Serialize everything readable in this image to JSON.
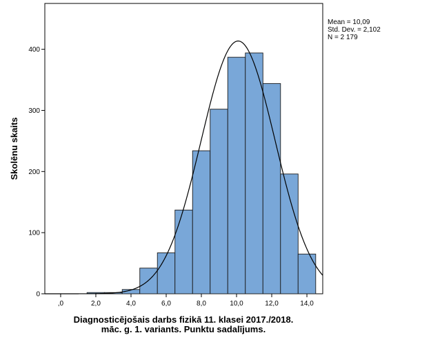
{
  "chart_data": {
    "type": "bar",
    "subtype": "histogram",
    "xlabel_lines": [
      "Diagnosticējošais darbs fizikā 11. klasei 2017./2018.",
      "māc. g. 1. variants. Punktu sadalījums."
    ],
    "ylabel": "Skolēnu skaits",
    "x_ticks": [
      ",0",
      "2,0",
      "4,0",
      "6,0",
      "8,0",
      "10,0",
      "12,0",
      "14,0"
    ],
    "x_tick_values": [
      0,
      2,
      4,
      6,
      8,
      10,
      12,
      14
    ],
    "y_ticks": [
      "0",
      "100",
      "200",
      "300",
      "400"
    ],
    "y_tick_values": [
      0,
      100,
      200,
      300,
      400
    ],
    "xlim": [
      -0.9,
      14.9
    ],
    "ylim": [
      0,
      475
    ],
    "bin_width": 1,
    "bins": [
      {
        "x": 0,
        "count": 0
      },
      {
        "x": 1,
        "count": 0
      },
      {
        "x": 2,
        "count": 2
      },
      {
        "x": 3,
        "count": 2
      },
      {
        "x": 4,
        "count": 7
      },
      {
        "x": 5,
        "count": 42
      },
      {
        "x": 6,
        "count": 67
      },
      {
        "x": 7,
        "count": 137
      },
      {
        "x": 8,
        "count": 234
      },
      {
        "x": 9,
        "count": 302
      },
      {
        "x": 10,
        "count": 387
      },
      {
        "x": 11,
        "count": 394
      },
      {
        "x": 12,
        "count": 344
      },
      {
        "x": 13,
        "count": 196
      },
      {
        "x": 14,
        "count": 65
      }
    ],
    "normal_curve": {
      "mean": 10.09,
      "std_dev": 2.102,
      "n": 2179
    },
    "stats": {
      "mean": "Mean = 10,09",
      "std_dev": "Std. Dev. = 2,102",
      "n": "N = 2 179"
    },
    "grid": false,
    "legend": "top-right",
    "colors": {
      "bar_fill": "#79a7d8",
      "bar_stroke": "#1a1a1a",
      "curve": "#000000",
      "axis": "#000000"
    }
  }
}
